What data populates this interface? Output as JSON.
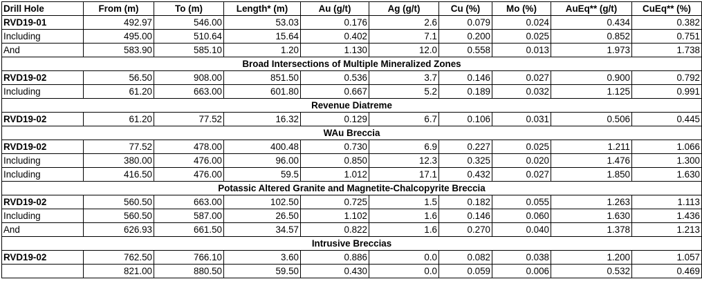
{
  "columns": [
    "Drill Hole",
    "From (m)",
    "To (m)",
    "Length* (m)",
    "Au (g/t)",
    "Ag (g/t)",
    "Cu (%)",
    "Mo (%)",
    "AuEq** (g/t)",
    "CuEq** (%)"
  ],
  "rows": [
    {
      "type": "data",
      "bold": true,
      "cells": [
        "RVD19-01",
        "492.97",
        "546.00",
        "53.03",
        "0.176",
        "2.6",
        "0.079",
        "0.024",
        "0.434",
        "0.382"
      ]
    },
    {
      "type": "data",
      "bold": false,
      "cells": [
        "Including",
        "495.00",
        "510.64",
        "15.64",
        "0.402",
        "7.1",
        "0.200",
        "0.025",
        "0.852",
        "0.751"
      ]
    },
    {
      "type": "data",
      "bold": false,
      "cells": [
        "And",
        "583.90",
        "585.10",
        "1.20",
        "1.130",
        "12.0",
        "0.558",
        "0.013",
        "1.973",
        "1.738"
      ]
    },
    {
      "type": "section",
      "label": "Broad Intersections of Multiple Mineralized Zones"
    },
    {
      "type": "data",
      "bold": true,
      "cells": [
        "RVD19-02",
        "56.50",
        "908.00",
        "851.50",
        "0.536",
        "3.7",
        "0.146",
        "0.027",
        "0.900",
        "0.792"
      ]
    },
    {
      "type": "data",
      "bold": false,
      "cells": [
        "Including",
        "61.20",
        "663.00",
        "601.80",
        "0.667",
        "5.2",
        "0.189",
        "0.032",
        "1.125",
        "0.991"
      ]
    },
    {
      "type": "section",
      "label": "Revenue Diatreme"
    },
    {
      "type": "data",
      "bold": true,
      "cells": [
        "RVD19-02",
        "61.20",
        "77.52",
        "16.32",
        "0.129",
        "6.7",
        "0.106",
        "0.031",
        "0.506",
        "0.445"
      ]
    },
    {
      "type": "section",
      "label": "WAu Breccia"
    },
    {
      "type": "data",
      "bold": true,
      "cells": [
        "RVD19-02",
        "77.52",
        "478.00",
        "400.48",
        "0.730",
        "6.9",
        "0.227",
        "0.025",
        "1.211",
        "1.066"
      ]
    },
    {
      "type": "data",
      "bold": false,
      "cells": [
        "Including",
        "380.00",
        "476.00",
        "96.00",
        "0.850",
        "12.3",
        "0.325",
        "0.020",
        "1.476",
        "1.300"
      ]
    },
    {
      "type": "data",
      "bold": false,
      "cells": [
        "Including",
        "416.50",
        "476.00",
        "59.5",
        "1.012",
        "17.1",
        "0.432",
        "0.027",
        "1.850",
        "1.630"
      ]
    },
    {
      "type": "section",
      "label": "Potassic Altered Granite and Magnetite-Chalcopyrite Breccia"
    },
    {
      "type": "data",
      "bold": true,
      "cells": [
        "RVD19-02",
        "560.50",
        "663.00",
        "102.50",
        "0.725",
        "1.5",
        "0.182",
        "0.055",
        "1.263",
        "1.113"
      ]
    },
    {
      "type": "data",
      "bold": false,
      "cells": [
        "Including",
        "560.50",
        "587.00",
        "26.50",
        "1.102",
        "1.6",
        "0.146",
        "0.060",
        "1.630",
        "1.436"
      ]
    },
    {
      "type": "data",
      "bold": false,
      "cells": [
        "And",
        "626.93",
        "661.50",
        "34.57",
        "0.822",
        "1.6",
        "0.270",
        "0.040",
        "1.378",
        "1.213"
      ]
    },
    {
      "type": "section",
      "label": "Intrusive Breccias"
    },
    {
      "type": "data",
      "bold": true,
      "cells": [
        "RVD19-02",
        "762.50",
        "766.10",
        "3.60",
        "0.886",
        "0.0",
        "0.082",
        "0.038",
        "1.200",
        "1.057"
      ]
    },
    {
      "type": "data",
      "bold": false,
      "cells": [
        "",
        "821.00",
        "880.50",
        "59.50",
        "0.430",
        "0.0",
        "0.059",
        "0.006",
        "0.532",
        "0.469"
      ]
    }
  ]
}
